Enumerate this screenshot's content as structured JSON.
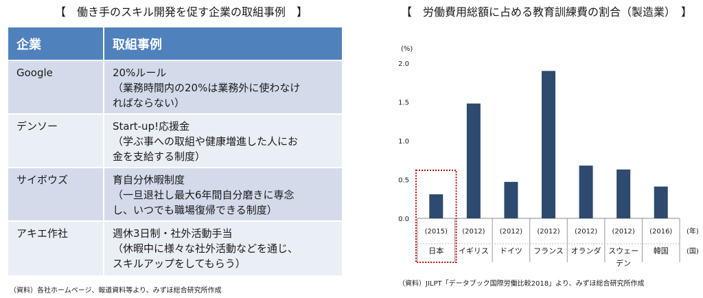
{
  "left_title": "【　働き手のスキル開発を促す企業の取組事例　】",
  "table": {
    "headers": [
      "企業",
      "取組事例"
    ],
    "rows": [
      {
        "company": "Google",
        "lines": [
          "20%ルール",
          "（業務時間内の20%は業務外に使わなけ",
          "ればならない）"
        ]
      },
      {
        "company": "デンソー",
        "lines": [
          "Start-up!応援金",
          "（学ぶ事への取組や健康増進した人にお",
          "金を支給する制度）"
        ]
      },
      {
        "company": "サイボウズ",
        "lines": [
          "育自分休暇制度",
          "（一旦退社し最大6年間自分磨きに専念",
          "し、いつでも職場復帰できる制度）"
        ]
      },
      {
        "company": "アキエ作社",
        "lines": [
          "週休3日制・社外活動手当",
          "（休暇中に様々な社外活動などを通じ、",
          "スキルアップをしてもらう）"
        ]
      }
    ]
  },
  "left_source": "（資料）各社ホームページ、報道資料等より、みずほ総合研究所作成",
  "right_title": "【　労働費用総額に占める教育訓練費の割合（製造業）　】",
  "right_source": "（資料）JILPT「データブック国際労働比較2018」より、みずほ総合研究所作成",
  "chart_data": {
    "type": "bar",
    "title": "労働費用総額に占める教育訓練費の割合（製造業）",
    "y_unit": "(%)",
    "x_year_unit": "(年)",
    "x_country_unit": "(国)",
    "ylim": [
      0,
      2.0
    ],
    "y_ticks": [
      "0.0",
      "0.5",
      "1.0",
      "1.5",
      "2.0"
    ],
    "grid": false,
    "categories": [
      {
        "year": "(2015)",
        "country": [
          "日本"
        ]
      },
      {
        "year": "(2012)",
        "country": [
          "イギリス"
        ]
      },
      {
        "year": "(2012)",
        "country": [
          "ドイツ"
        ]
      },
      {
        "year": "(2012)",
        "country": [
          "フランス"
        ]
      },
      {
        "year": "(2012)",
        "country": [
          "オランダ"
        ]
      },
      {
        "year": "(2012)",
        "country": [
          "スウェー",
          "デン"
        ]
      },
      {
        "year": "(2016)",
        "country": [
          "韓国"
        ]
      }
    ],
    "values": [
      0.31,
      1.48,
      0.47,
      1.9,
      0.68,
      0.63,
      0.41
    ],
    "bar_color": "#2e4a6e",
    "highlight_color": "#c00000",
    "highlight_index": 0
  }
}
